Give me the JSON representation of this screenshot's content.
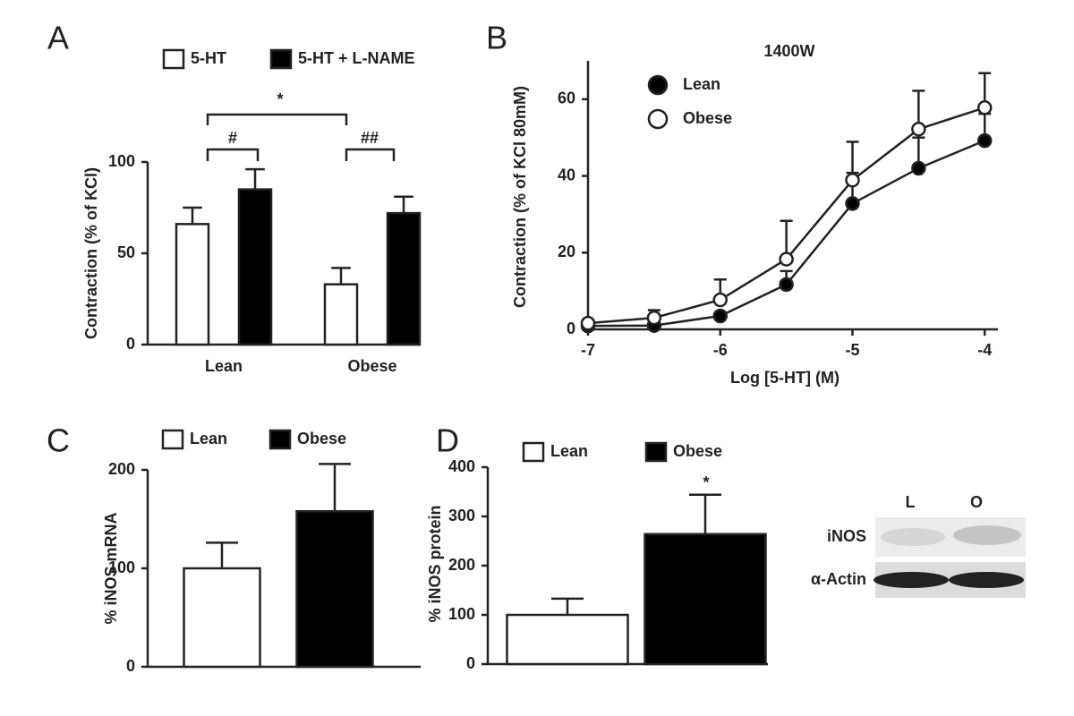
{
  "chart_data": [
    {
      "type": "bar",
      "panel": "A",
      "ylabel": "Contraction (% of KCl)",
      "categories": [
        "Lean",
        "Obese"
      ],
      "series": [
        {
          "name": "5-HT",
          "color": "#ffffff",
          "values": [
            66,
            33
          ],
          "errors": [
            9,
            9
          ]
        },
        {
          "name": "5-HT + L-NAME",
          "color": "#000000",
          "values": [
            85,
            72
          ],
          "errors": [
            11,
            9
          ]
        }
      ],
      "ylim": [
        0,
        100
      ],
      "yticks": [
        0,
        50,
        100
      ],
      "annotations": [
        "#",
        "##",
        "*"
      ]
    },
    {
      "type": "line",
      "panel": "B",
      "title": "1400W",
      "xlabel": "Log [5-HT] (M)",
      "ylabel": "Contraction (% of KCl 80mM)",
      "x": [
        -7,
        -6.5,
        -6,
        -5.5,
        -5,
        -4.5,
        -4
      ],
      "series": [
        {
          "name": "Lean",
          "color": "#000000",
          "values": [
            0.9,
            1,
            3.5,
            11.7,
            32.8,
            42,
            49.2
          ],
          "errors": [
            0.5,
            0.5,
            0.5,
            3.5,
            8,
            8,
            7
          ]
        },
        {
          "name": "Obese",
          "color": "#ffffff",
          "values": [
            1.6,
            3,
            7.7,
            18.3,
            38.9,
            52.2,
            57.8
          ],
          "errors": [
            0.5,
            2,
            5.3,
            10,
            10,
            10,
            9
          ]
        }
      ],
      "xlim": [
        -7,
        -3.9
      ],
      "ylim": [
        0,
        70
      ],
      "xticks": [
        -7,
        -6,
        -5,
        -4
      ],
      "yticks": [
        0,
        20,
        40,
        60
      ]
    },
    {
      "type": "bar",
      "panel": "C",
      "ylabel": "% iNOS mRNA",
      "categories": [
        null
      ],
      "series": [
        {
          "name": "Lean",
          "color": "#ffffff",
          "values": [
            100
          ],
          "errors": [
            26
          ]
        },
        {
          "name": "Obese",
          "color": "#000000",
          "values": [
            158
          ],
          "errors": [
            48
          ]
        }
      ],
      "ylim": [
        0,
        200
      ],
      "yticks": [
        0,
        100,
        200
      ]
    },
    {
      "type": "bar",
      "panel": "D",
      "ylabel": "% iNOS protein",
      "categories": [
        null
      ],
      "series": [
        {
          "name": "Lean",
          "color": "#ffffff",
          "values": [
            100
          ],
          "errors": [
            33
          ]
        },
        {
          "name": "Obese",
          "color": "#000000",
          "values": [
            264
          ],
          "errors": [
            80
          ]
        }
      ],
      "ylim": [
        0,
        400
      ],
      "yticks": [
        0,
        100,
        200,
        300,
        400
      ],
      "annotations": [
        "*"
      ],
      "blot": {
        "lanes": [
          "L",
          "O"
        ],
        "rows": [
          "iNOS",
          "α-Actin"
        ]
      }
    }
  ]
}
